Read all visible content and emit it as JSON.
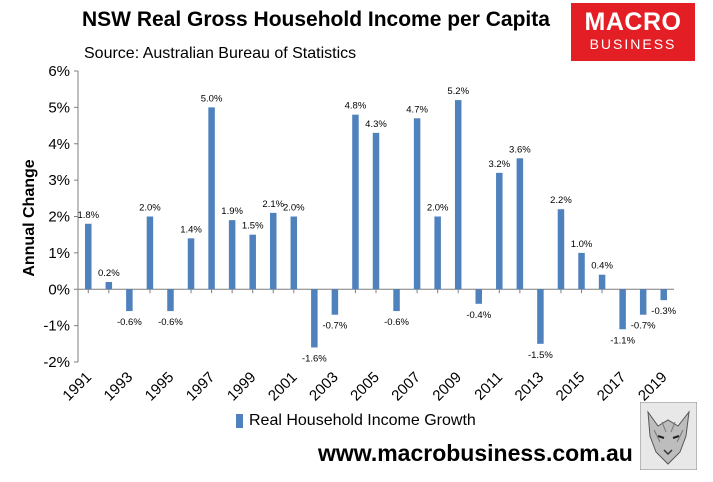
{
  "header": {
    "title": "NSW Real Gross Household Income per Capita",
    "subtitle": "Source: Australian Bureau of Statistics"
  },
  "logo": {
    "line1": "MACRO",
    "line2": "BUSINESS"
  },
  "footer": {
    "url": "www.macrobusiness.com.au"
  },
  "colors": {
    "bar": "#4f81bd",
    "grid": "#d9d9d9",
    "logo_bg": "#e31e24"
  },
  "chart_data": {
    "type": "bar",
    "ylabel": "Annual Change",
    "ylim": [
      -2,
      6
    ],
    "yticks": [
      "-2%",
      "-1%",
      "0%",
      "1%",
      "2%",
      "3%",
      "4%",
      "5%",
      "6%"
    ],
    "grid": false,
    "legend_position": "bottom",
    "series": [
      {
        "name": "Real Household Income Growth",
        "values": [
          1.8,
          0.2,
          -0.6,
          2.0,
          -0.6,
          1.4,
          5.0,
          1.9,
          1.5,
          2.1,
          2.0,
          -1.6,
          -0.7,
          4.8,
          4.3,
          -0.6,
          4.7,
          2.0,
          5.2,
          -0.4,
          3.2,
          3.6,
          -1.5,
          2.2,
          1.0,
          0.4,
          -1.1,
          -0.7,
          -0.3
        ],
        "labels": [
          "1.8%",
          "0.2%",
          "-0.6%",
          "2.0%",
          "-0.6%",
          "1.4%",
          "5.0%",
          "1.9%",
          "1.5%",
          "2.1%",
          "2.0%",
          "-1.6%",
          "-0.7%",
          "4.8%",
          "4.3%",
          "-0.6%",
          "4.7%",
          "2.0%",
          "5.2%",
          "-0.4%",
          "3.2%",
          "3.6%",
          "-1.5%",
          "2.2%",
          "1.0%",
          "0.4%",
          "-1.1%",
          "-0.7%",
          "-0.3%"
        ]
      }
    ],
    "categories": [
      "1991",
      "1992",
      "1993",
      "1994",
      "1995",
      "1996",
      "1997",
      "1998",
      "1999",
      "2000",
      "2001",
      "2002",
      "2003",
      "2004",
      "2005",
      "2006",
      "2007",
      "2008",
      "2009",
      "2010",
      "2011",
      "2012",
      "2013",
      "2014",
      "2015",
      "2016",
      "2017",
      "2018",
      "2019"
    ],
    "xtick_labels": [
      "1991",
      "",
      "1993",
      "",
      "1995",
      "",
      "1997",
      "",
      "1999",
      "",
      "2001",
      "",
      "2003",
      "",
      "2005",
      "",
      "2007",
      "",
      "2009",
      "",
      "2011",
      "",
      "2013",
      "",
      "2015",
      "",
      "2017",
      "",
      "2019"
    ]
  }
}
